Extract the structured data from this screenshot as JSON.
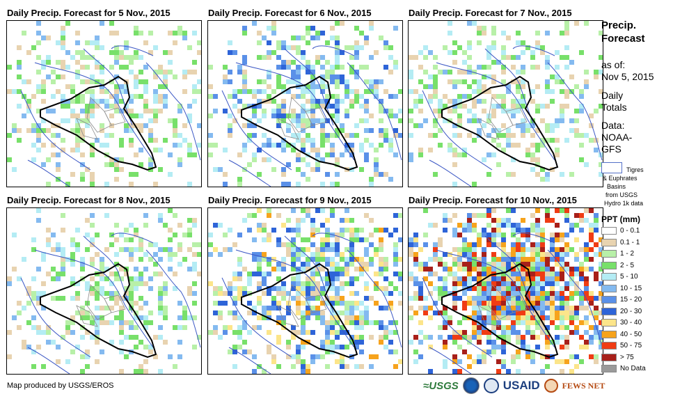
{
  "maps": [
    {
      "title": "Daily Precip. Forecast for 5 Nov., 2015",
      "intensity": 1
    },
    {
      "title": "Daily Precip. Forecast for 6 Nov., 2015",
      "intensity": 2
    },
    {
      "title": "Daily Precip. Forecast for 7 Nov., 2015",
      "intensity": 1
    },
    {
      "title": "Daily Precip. Forecast for 8 Nov., 2015",
      "intensity": 1
    },
    {
      "title": "Daily Precip. Forecast for 9 Nov., 2015",
      "intensity": 3
    },
    {
      "title": "Daily Precip. Forecast for 10 Nov., 2015",
      "intensity": 5
    }
  ],
  "legend": {
    "title_line1": "Precip.",
    "title_line2": "Forecast",
    "asof_line1": "as of:",
    "asof_line2": "Nov 5, 2015",
    "daily_line1": "Daily",
    "daily_line2": "Totals",
    "data_line1": "Data:",
    "data_line2": "NOAA-",
    "data_line3": "GFS",
    "basin_line1": "Tigres",
    "basin_line2": "& Euphrates",
    "basin_line3": "Basins",
    "basin_line4": "from USGS",
    "basin_line5": "Hydro 1k data",
    "ppt_title": "PPT (mm)",
    "classes": [
      {
        "label": "0 - 0.1",
        "color": "#ffffff"
      },
      {
        "label": "0.1 - 1",
        "color": "#e8d3b0"
      },
      {
        "label": "1 - 2",
        "color": "#b8f0a8"
      },
      {
        "label": "2 - 5",
        "color": "#78e06a"
      },
      {
        "label": "5 - 10",
        "color": "#b4ecf4"
      },
      {
        "label": "10 - 15",
        "color": "#84baf0"
      },
      {
        "label": "15 - 20",
        "color": "#5a90e8"
      },
      {
        "label": "20 - 30",
        "color": "#2e64d8"
      },
      {
        "label": "30 - 40",
        "color": "#fce58a"
      },
      {
        "label": "40 - 50",
        "color": "#f6a31c"
      },
      {
        "label": "50 - 75",
        "color": "#f03c14"
      },
      {
        "label": "> 75",
        "color": "#a8201a"
      },
      {
        "label": "No Data",
        "color": "#9a9a9a"
      }
    ]
  },
  "footer": {
    "credit": "Map produced by USGS/EROS"
  },
  "logos": {
    "usgs": "≈USGS",
    "usaid": "USAID",
    "fews": "FEWS NET"
  }
}
